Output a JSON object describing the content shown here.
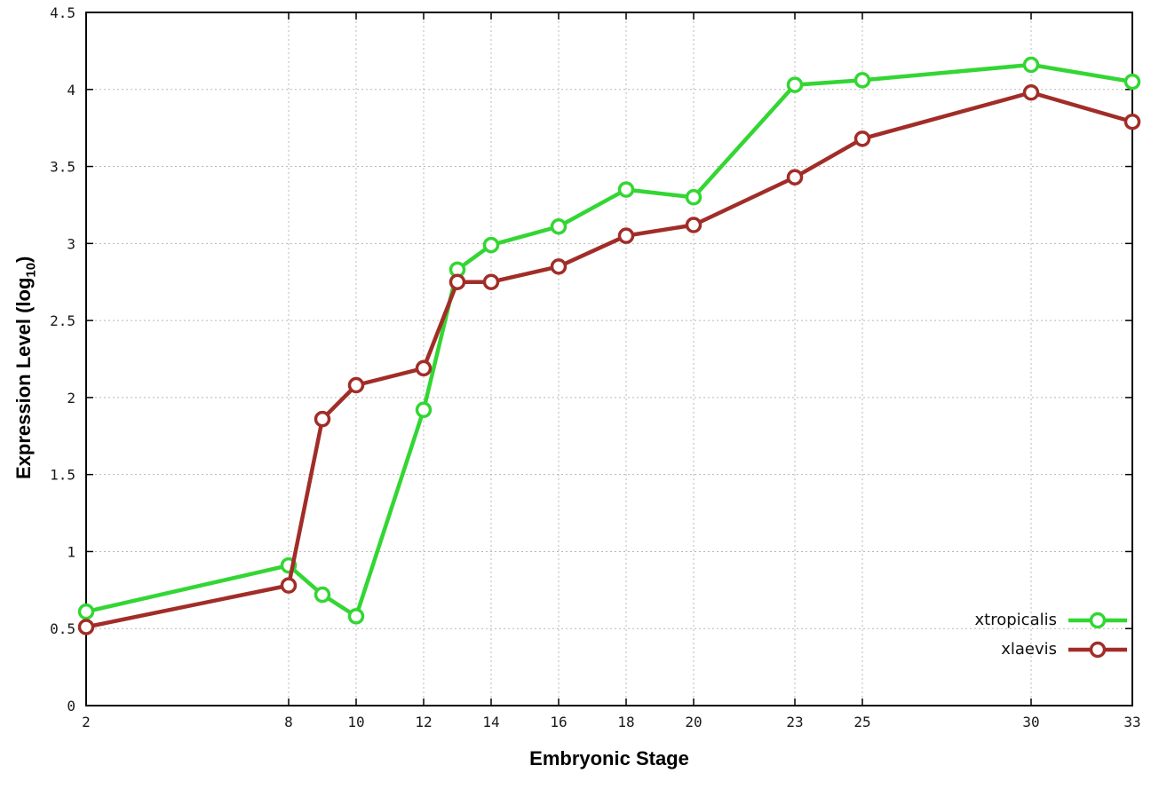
{
  "chart_data": {
    "type": "line",
    "title": "",
    "xlabel": "Embryonic Stage",
    "ylabel": "Expression Level (log10)",
    "x": [
      2,
      8,
      9,
      10,
      12,
      13,
      14,
      16,
      18,
      20,
      23,
      25,
      30,
      33
    ],
    "series": [
      {
        "name": "xtropicalis",
        "color": "#33d633",
        "values": [
          0.61,
          0.91,
          0.72,
          0.58,
          1.92,
          2.83,
          2.99,
          3.11,
          3.35,
          3.3,
          4.03,
          4.06,
          4.16,
          4.05
        ]
      },
      {
        "name": "xlaevis",
        "color": "#a12d28",
        "values": [
          0.51,
          0.78,
          1.86,
          2.08,
          2.19,
          2.75,
          2.75,
          2.85,
          3.05,
          3.12,
          3.43,
          3.68,
          3.98,
          3.79
        ]
      }
    ],
    "xlim": [
      2,
      33
    ],
    "ylim": [
      0,
      4.5
    ],
    "xticks": [
      2,
      8,
      10,
      12,
      14,
      16,
      18,
      20,
      23,
      25,
      30,
      33
    ],
    "xtick_labels": [
      "2",
      "8",
      "10",
      "12",
      "14",
      "16",
      "18",
      "20",
      "23",
      "25",
      "30",
      "33"
    ],
    "yticks": [
      0,
      0.5,
      1,
      1.5,
      2,
      2.5,
      3,
      3.5,
      4,
      4.5
    ],
    "ytick_labels": [
      "0",
      "0.5",
      "1",
      "1.5",
      "2",
      "2.5",
      "3",
      "3.5",
      "4",
      "4.5"
    ],
    "grid": true,
    "legend_position": "bottom-right",
    "marker": "open-circle",
    "background": "#ffffff"
  },
  "labels": {
    "xlabel": "Embryonic Stage",
    "ylabel_prefix": "Expression Level (log",
    "ylabel_sub": "10",
    "ylabel_suffix": ")"
  }
}
